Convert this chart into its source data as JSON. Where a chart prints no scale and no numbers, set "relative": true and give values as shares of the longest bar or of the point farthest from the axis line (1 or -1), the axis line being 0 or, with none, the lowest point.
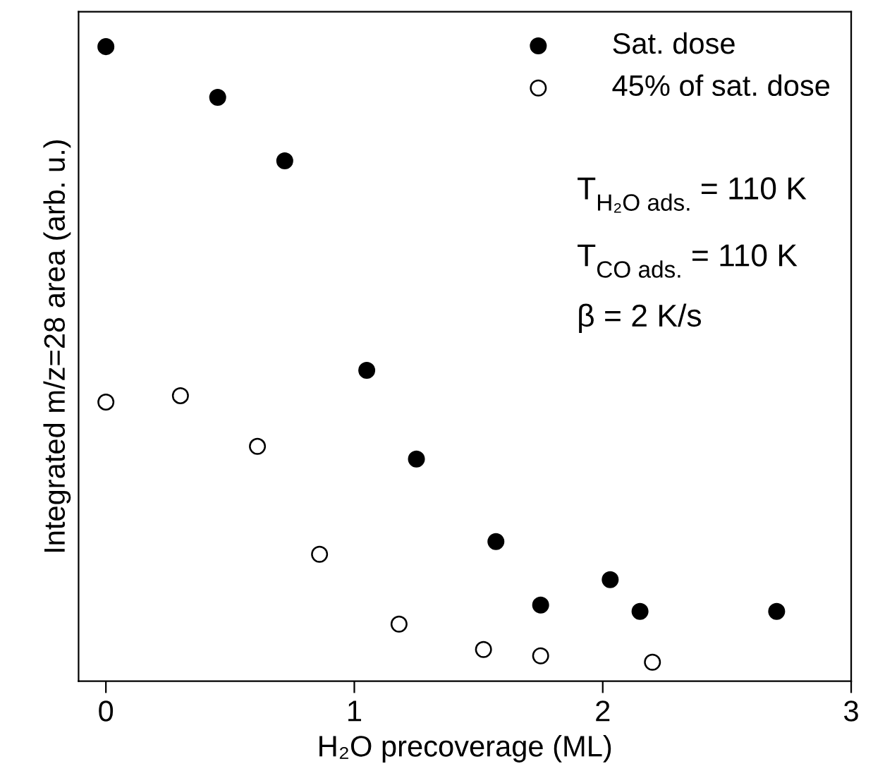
{
  "chart_data": {
    "type": "scatter",
    "xlabel": "H₂O precoverage (ML)",
    "ylabel": "Integrated m/z=28 area (arb. u.)",
    "relative": true,
    "xlim": [
      -0.11,
      3
    ],
    "xticks": [
      0,
      1,
      2,
      3
    ],
    "tick_labels": "x",
    "legend": "top right",
    "marker": "circle",
    "grid": false,
    "annotations": [
      "T$_{H₂O ads.}$ = 110 K",
      "T$_{CO ads.}$ = 110 K",
      "β = 2 K/s"
    ],
    "series": [
      {
        "name": "Sat. dose",
        "color": "#000000",
        "x": [
          0,
          0.45,
          0.72,
          1.05,
          1.25,
          1.57,
          1.75,
          2.03,
          2.15,
          2.7
        ],
        "values": [
          1.0,
          0.92,
          0.82,
          0.49,
          0.35,
          0.22,
          0.12,
          0.16,
          0.11,
          0.11
        ]
      },
      {
        "name": "45% of sat. dose",
        "color": "#ffffff",
        "x": [
          0,
          0.3,
          0.61,
          0.86,
          1.18,
          1.52,
          1.75,
          2.2
        ],
        "values": [
          0.44,
          0.45,
          0.37,
          0.2,
          0.09,
          0.05,
          0.04,
          0.03
        ]
      }
    ]
  }
}
